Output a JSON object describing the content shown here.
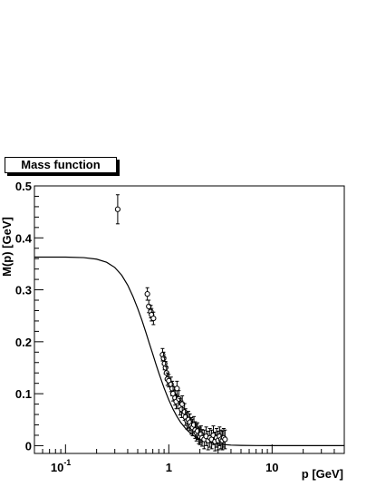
{
  "chart_data": {
    "type": "scatter",
    "title": "Mass function",
    "xlabel": "p [GeV]",
    "ylabel": "M(p) [GeV]",
    "x_scale": "log",
    "xlim": [
      0.05,
      50
    ],
    "ylim": [
      -0.015,
      0.5
    ],
    "x_tick_labels": [
      {
        "value": 0.1,
        "base": "10",
        "exp": "-1"
      },
      {
        "value": 1,
        "base": "1",
        "exp": ""
      },
      {
        "value": 10,
        "base": "10",
        "exp": ""
      }
    ],
    "y_ticks": [
      0,
      0.1,
      0.2,
      0.3,
      0.4,
      0.5
    ],
    "y_tick_labels": [
      "0",
      "0.1",
      "0.2",
      "0.3",
      "0.4",
      "0.5"
    ],
    "grid": false,
    "series": [
      {
        "kind": "data points with error bars",
        "x": [
          0.32,
          0.62,
          0.64,
          0.67,
          0.68,
          0.71,
          0.87,
          0.89,
          0.91,
          0.93,
          0.95,
          0.97,
          1.0,
          1.05,
          1.08,
          1.1,
          1.15,
          1.18,
          1.2,
          1.25,
          1.28,
          1.33,
          1.35,
          1.42,
          1.45,
          1.5,
          1.55,
          1.6,
          1.65,
          1.7,
          1.75,
          1.8,
          1.85,
          1.9,
          1.95,
          2.0,
          2.05,
          2.1,
          2.2,
          2.3,
          2.4,
          2.5,
          2.6,
          2.7,
          2.8,
          2.9,
          3.0,
          3.1,
          3.2,
          3.3,
          3.4,
          3.5
        ],
        "y": [
          0.455,
          0.292,
          0.268,
          0.258,
          0.252,
          0.245,
          0.175,
          0.168,
          0.158,
          0.15,
          0.14,
          0.128,
          0.125,
          0.118,
          0.11,
          0.1,
          0.092,
          0.085,
          0.11,
          0.09,
          0.075,
          0.07,
          0.08,
          0.065,
          0.055,
          0.048,
          0.05,
          0.045,
          0.038,
          0.035,
          0.04,
          0.03,
          0.025,
          0.028,
          0.02,
          0.018,
          0.022,
          0.015,
          0.012,
          0.018,
          0.01,
          0.015,
          0.012,
          0.02,
          0.008,
          0.015,
          0.01,
          0.018,
          0.012,
          0.01,
          0.015,
          0.012
        ],
        "yerr": [
          0.028,
          0.012,
          0.012,
          0.012,
          0.012,
          0.012,
          0.012,
          0.012,
          0.012,
          0.012,
          0.012,
          0.012,
          0.012,
          0.014,
          0.014,
          0.014,
          0.014,
          0.014,
          0.014,
          0.016,
          0.016,
          0.016,
          0.016,
          0.016,
          0.016,
          0.016,
          0.016,
          0.016,
          0.016,
          0.016,
          0.016,
          0.016,
          0.016,
          0.016,
          0.016,
          0.016,
          0.016,
          0.016,
          0.018,
          0.018,
          0.018,
          0.018,
          0.018,
          0.018,
          0.018,
          0.018,
          0.018,
          0.018,
          0.018,
          0.018,
          0.018,
          0.018
        ]
      },
      {
        "kind": "fit curve",
        "x": [
          0.05,
          0.1,
          0.15,
          0.2,
          0.25,
          0.3,
          0.35,
          0.4,
          0.45,
          0.5,
          0.55,
          0.6,
          0.65,
          0.7,
          0.75,
          0.8,
          0.9,
          1.0,
          1.1,
          1.2,
          1.3,
          1.4,
          1.5,
          1.6,
          1.8,
          2.0,
          2.2,
          2.5,
          2.8,
          3.0,
          3.5,
          4.0,
          5.0,
          7.0,
          10,
          20,
          50
        ],
        "y": [
          0.363,
          0.363,
          0.362,
          0.359,
          0.353,
          0.343,
          0.328,
          0.309,
          0.287,
          0.264,
          0.241,
          0.218,
          0.196,
          0.176,
          0.157,
          0.14,
          0.111,
          0.088,
          0.07,
          0.056,
          0.045,
          0.037,
          0.03,
          0.025,
          0.017,
          0.012,
          0.009,
          0.006,
          0.004,
          0.003,
          0.002,
          0.001,
          0.0005,
          0.0002,
          0.0,
          0.0,
          0.0
        ]
      }
    ]
  }
}
